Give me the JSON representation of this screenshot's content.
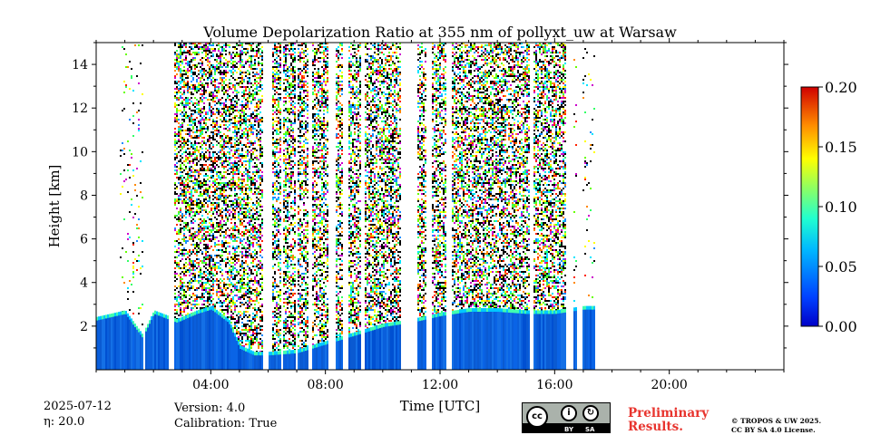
{
  "chart_data": {
    "type": "heatmap",
    "title": "Volume Depolarization Ratio at 355 nm of pollyxt_uw at Warsaw",
    "xlabel": "Time [UTC]",
    "ylabel": "Height [km]",
    "xlim": [
      0,
      24
    ],
    "ylim": [
      0,
      15
    ],
    "x_ticks": [
      4,
      8,
      12,
      16,
      20
    ],
    "x_tick_labels": [
      "04:00",
      "08:00",
      "12:00",
      "16:00",
      "20:00"
    ],
    "y_ticks": [
      2,
      4,
      6,
      8,
      10,
      12,
      14
    ],
    "y_tick_labels": [
      "2",
      "4",
      "6",
      "8",
      "10",
      "12",
      "14"
    ],
    "colorbar": {
      "min": 0.0,
      "max": 0.2,
      "ticks": [
        0.0,
        0.05,
        0.1,
        0.15,
        0.2
      ],
      "tick_labels": [
        "0.00",
        "0.05",
        "0.10",
        "0.15",
        "0.20"
      ],
      "colormap": "jet"
    },
    "data_extent_hours": [
      0,
      17.4
    ],
    "noise_regions": [
      [
        2.7,
        6.0
      ],
      [
        6.1,
        10.6
      ],
      [
        11.2,
        15.1
      ],
      [
        15.2,
        16.4
      ]
    ],
    "sparse_regions": [
      [
        0.8,
        1.6
      ],
      [
        16.4,
        17.4
      ]
    ],
    "low_layer_top_km": [
      [
        0,
        2.3
      ],
      [
        1.0,
        2.6
      ],
      [
        1.6,
        1.5
      ],
      [
        2.0,
        2.6
      ],
      [
        2.8,
        2.2
      ],
      [
        3.5,
        2.6
      ],
      [
        4.0,
        2.8
      ],
      [
        4.6,
        2.2
      ],
      [
        5.0,
        1.0
      ],
      [
        5.5,
        0.7
      ],
      [
        6.0,
        0.7
      ],
      [
        7.0,
        0.8
      ],
      [
        8.0,
        1.2
      ],
      [
        9.0,
        1.6
      ],
      [
        10.0,
        2.0
      ],
      [
        11.0,
        2.2
      ],
      [
        12.0,
        2.5
      ],
      [
        13.0,
        2.7
      ],
      [
        14.0,
        2.7
      ],
      [
        15.0,
        2.6
      ],
      [
        16.0,
        2.6
      ],
      [
        17.0,
        2.8
      ],
      [
        17.4,
        2.8
      ]
    ],
    "gaps_hours": [
      [
        1.6,
        1.68
      ],
      [
        2.5,
        2.7
      ],
      [
        5.8,
        6.0
      ],
      [
        6.45,
        6.5
      ],
      [
        6.95,
        7.02
      ],
      [
        7.4,
        7.5
      ],
      [
        8.1,
        8.3
      ],
      [
        8.6,
        8.75
      ],
      [
        9.2,
        9.35
      ],
      [
        10.6,
        11.2
      ],
      [
        11.5,
        11.7
      ],
      [
        12.2,
        12.35
      ],
      [
        15.1,
        15.2
      ],
      [
        16.4,
        16.6
      ],
      [
        16.75,
        16.95
      ]
    ]
  },
  "meta": {
    "date": "2025-07-12",
    "eta": "η: 20.0",
    "version": "Version: 4.0",
    "calibration": "Calibration: True"
  },
  "footer": {
    "preliminary_line1": "Preliminary",
    "preliminary_line2": "Results.",
    "license_line1": "© TROPOS & UW 2025.",
    "license_line2": "CC BY SA 4.0 License.",
    "cc_badge": {
      "cc": "cc",
      "by": "BY",
      "sa": "SA"
    }
  }
}
